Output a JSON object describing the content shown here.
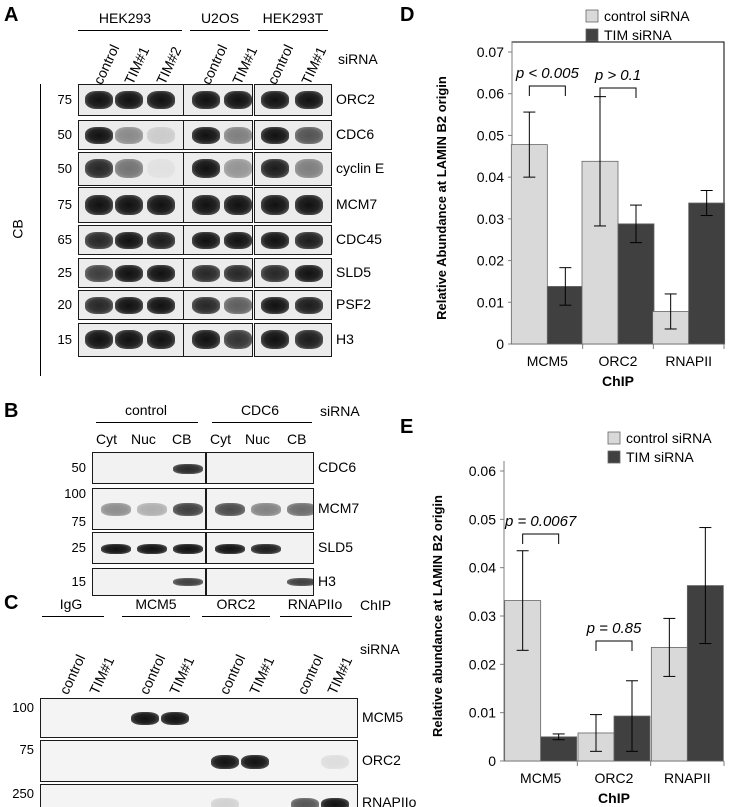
{
  "panel_A": {
    "letter": "A",
    "cell_lines": [
      "HEK293",
      "U2OS",
      "HEK293T"
    ],
    "lanes": [
      "control",
      "TIM#1",
      "TIM#2",
      "control",
      "TIM#1",
      "control",
      "TIM#1"
    ],
    "sirna_label": "siRNA",
    "side_label": "CB",
    "rows": [
      {
        "protein": "ORC2",
        "mw": "75"
      },
      {
        "protein": "CDC6",
        "mw": "50"
      },
      {
        "protein": "cyclin E",
        "mw": "50"
      },
      {
        "protein": "MCM7",
        "mw": "75"
      },
      {
        "protein": "CDC45",
        "mw": "65"
      },
      {
        "protein": "SLD5",
        "mw": "25"
      },
      {
        "protein": "PSF2",
        "mw": "20"
      },
      {
        "protein": "H3",
        "mw": "15"
      }
    ]
  },
  "panel_B": {
    "letter": "B",
    "groups": [
      "control",
      "CDC6"
    ],
    "sirna_label": "siRNA",
    "lanes": [
      "Cyt",
      "Nuc",
      "CB",
      "Cyt",
      "Nuc",
      "CB"
    ],
    "rows": [
      {
        "protein": "CDC6",
        "mw": [
          "50"
        ]
      },
      {
        "protein": "MCM7",
        "mw": [
          "100",
          "75"
        ]
      },
      {
        "protein": "SLD5",
        "mw": [
          "25"
        ]
      },
      {
        "protein": "H3",
        "mw": [
          "15"
        ]
      }
    ]
  },
  "panel_C": {
    "letter": "C",
    "chip_groups": [
      "IgG",
      "MCM5",
      "ORC2",
      "RNAPIIo"
    ],
    "chip_label": "ChIP",
    "lanes": [
      "control",
      "TIM#1",
      "control",
      "TIM#1",
      "control",
      "TIM#1",
      "control",
      "TIM#1"
    ],
    "sirna_label": "siRNA",
    "rows": [
      {
        "protein": "MCM5",
        "mw": "100"
      },
      {
        "protein": "ORC2",
        "mw": "75"
      },
      {
        "protein": "RNAPIIo",
        "mw": "250"
      }
    ]
  },
  "colors": {
    "control": "#d9d9d9",
    "tim": "#404040",
    "axis": "#7f7f7f"
  },
  "chart_data": [
    {
      "panel": "D",
      "type": "bar",
      "categories": [
        "MCM5",
        "ORC2",
        "RNAPII"
      ],
      "series": [
        {
          "name": "control siRNA",
          "values": [
            0.0478,
            0.0438,
            0.0078
          ],
          "errors": [
            0.0078,
            0.0155,
            0.0042
          ]
        },
        {
          "name": "TIM siRNA",
          "values": [
            0.0138,
            0.0288,
            0.0338
          ],
          "errors": [
            0.0045,
            0.0045,
            0.003
          ]
        }
      ],
      "xlabel": "ChIP",
      "ylabel": "Relative Abundance at LAMIN B2 origin",
      "ylim": [
        0,
        0.07
      ],
      "yticks": [
        "0",
        "0.01",
        "0.02",
        "0.03",
        "0.04",
        "0.05",
        "0.06",
        "0.07"
      ],
      "annotations": [
        "p < 0.005",
        "p > 0.1"
      ],
      "legend": "top-right",
      "grid": false
    },
    {
      "panel": "E",
      "type": "bar",
      "categories": [
        "MCM5",
        "ORC2",
        "RNAPII"
      ],
      "series": [
        {
          "name": "control siRNA",
          "values": [
            0.0332,
            0.0058,
            0.0235
          ],
          "errors": [
            0.0103,
            0.0038,
            0.006
          ]
        },
        {
          "name": "TIM siRNA",
          "values": [
            0.005,
            0.0093,
            0.0363
          ],
          "errors": [
            0.0006,
            0.0073,
            0.012
          ]
        }
      ],
      "xlabel": "ChIP",
      "ylabel": "Relative abundance at LAMIN B2 origin",
      "ylim": [
        0,
        0.06
      ],
      "yticks": [
        "0",
        "0.01",
        "0.02",
        "0.03",
        "0.04",
        "0.05",
        "0.06"
      ],
      "annotations": [
        "p = 0.0067",
        "p = 0.85"
      ],
      "legend": "top-right",
      "grid": false
    }
  ]
}
